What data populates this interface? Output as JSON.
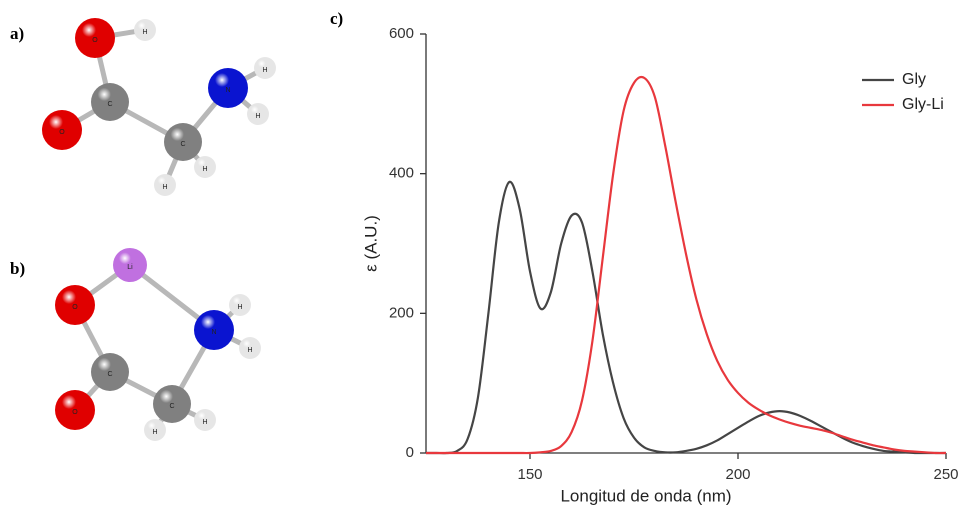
{
  "panels": {
    "a": "a)",
    "b": "b)"
  },
  "molecule_a": {
    "atoms": [
      "O",
      "H",
      "C",
      "O",
      "C",
      "N",
      "H",
      "H",
      "H",
      "H"
    ]
  },
  "molecule_b": {
    "atoms": [
      "Li",
      "O",
      "N",
      "H",
      "H",
      "C",
      "O",
      "C",
      "H",
      "H"
    ]
  },
  "chart_data": {
    "type": "line",
    "panel": "c)",
    "x_label": "Longitud de onda (nm)",
    "y_label": "ε (A.U.)",
    "x": [
      125,
      127.5,
      130,
      132.5,
      135,
      137.5,
      140,
      142.5,
      145,
      147.5,
      150,
      152.5,
      155,
      157.5,
      160,
      162.5,
      165,
      167.5,
      170,
      172.5,
      175,
      177.5,
      180,
      182.5,
      185,
      187.5,
      190,
      192.5,
      195,
      197.5,
      200,
      202.5,
      205,
      207.5,
      210,
      212.5,
      215,
      217.5,
      220,
      222.5,
      225,
      227.5,
      230,
      232.5,
      235,
      237.5,
      240,
      242.5,
      245,
      247.5,
      250
    ],
    "series": [
      {
        "name": "Gly",
        "color": "#454545",
        "values": [
          0,
          0,
          0,
          3,
          20,
          80,
          200,
          330,
          388,
          350,
          260,
          207,
          230,
          300,
          340,
          330,
          260,
          170,
          100,
          50,
          22,
          8,
          3,
          1,
          1,
          3,
          6,
          11,
          18,
          27,
          36,
          45,
          53,
          58,
          60,
          58,
          53,
          46,
          38,
          30,
          22,
          15,
          10,
          6,
          3,
          2,
          1,
          0,
          0,
          0,
          0
        ]
      },
      {
        "name": "Gly-Li",
        "color": "#e8383d",
        "values": [
          0,
          0,
          0,
          0,
          0,
          0,
          0,
          0,
          0,
          0,
          0,
          1,
          3,
          10,
          30,
          75,
          160,
          280,
          400,
          490,
          530,
          537,
          510,
          440,
          360,
          285,
          220,
          170,
          132,
          105,
          86,
          72,
          62,
          54,
          48,
          43,
          39,
          36,
          33,
          29,
          24,
          19,
          15,
          11,
          8,
          5,
          3,
          2,
          1,
          0,
          0
        ]
      }
    ],
    "xlim": [
      125,
      250
    ],
    "xticks": [
      150,
      200,
      250
    ],
    "ylim": [
      0,
      600
    ],
    "yticks": [
      0,
      200,
      400,
      600
    ],
    "grid": false,
    "legend": "top-right"
  }
}
